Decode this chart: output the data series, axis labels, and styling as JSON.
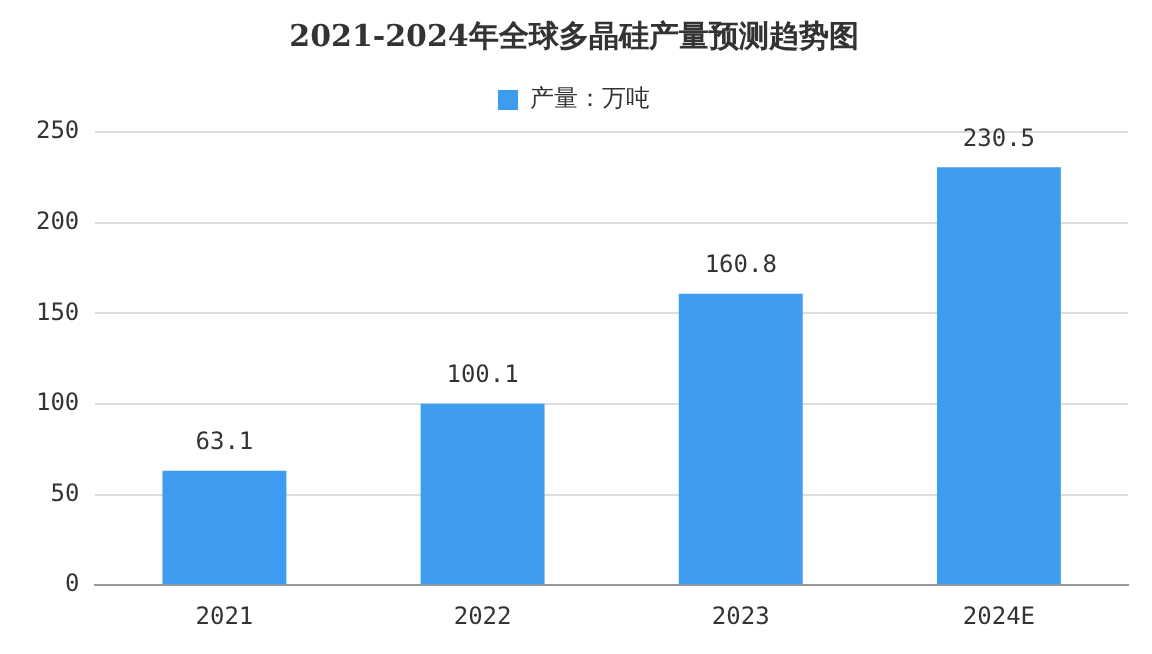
{
  "chart_data": {
    "type": "bar",
    "title": "2021-2024年全球多晶硅产量预测趋势图",
    "categories": [
      "2021",
      "2022",
      "2023",
      "2024E"
    ],
    "series": [
      {
        "name": "产量：万吨",
        "color": "#3d9cf0",
        "values": [
          63.1,
          100.1,
          160.8,
          230.5
        ]
      }
    ],
    "ylim": [
      0,
      250
    ],
    "yticks": [
      0,
      50,
      100,
      150,
      200,
      250
    ],
    "grid": "y",
    "legend": "top",
    "data_labels": true
  }
}
